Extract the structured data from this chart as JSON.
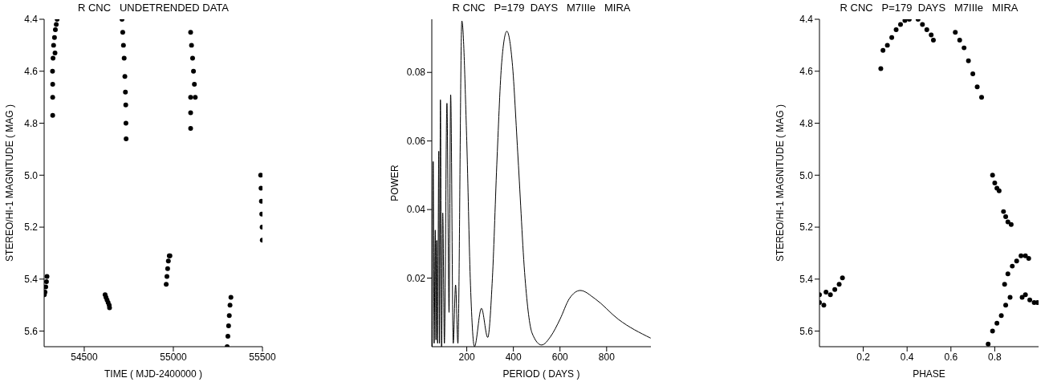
{
  "chart_data": [
    {
      "type": "scatter",
      "title": "R CNC   UNDETRENDED DATA",
      "xlabel": "TIME  ( MJD-2400000 )",
      "ylabel": "STEREO/HI-1 MAGNITUDE ( MAG )",
      "marker": "circle",
      "xlim": [
        54275,
        55500
      ],
      "xticks": [
        54500,
        55000,
        55500
      ],
      "ylim": [
        5.66,
        4.4
      ],
      "yticks": [
        4.4,
        4.6,
        4.8,
        {
          "value": 5,
          "label": "5.0"
        },
        5.2,
        5.4,
        5.6
      ],
      "series": [
        {
          "color": "#000000",
          "x": [
            54276,
            54280,
            54284,
            54288,
            54291,
            54322,
            54323,
            54323,
            54323,
            54325,
            54328,
            54333,
            54336,
            54338,
            54343,
            54348,
            54617,
            54622,
            54628,
            54634,
            54640,
            54642,
            54712,
            54716,
            54720,
            54724,
            54728,
            54731,
            54733,
            54734,
            54735,
            54960,
            54964,
            54968,
            54972,
            54977,
            54981,
            55097,
            55097,
            55097,
            55097,
            55102,
            55108,
            55113,
            55118,
            55123,
            55302,
            55306,
            55310,
            55314,
            55318,
            55323,
            55490,
            55492,
            55494,
            55496,
            55498,
            55499
          ],
          "values": [
            5.46,
            5.45,
            5.43,
            5.41,
            5.39,
            4.6,
            4.65,
            4.7,
            4.77,
            4.55,
            4.5,
            4.47,
            4.53,
            4.44,
            4.42,
            4.4,
            5.46,
            5.47,
            5.48,
            5.49,
            5.5,
            5.51,
            4.4,
            4.45,
            4.5,
            4.55,
            4.62,
            4.68,
            4.73,
            4.8,
            4.86,
            5.42,
            5.39,
            5.36,
            5.33,
            5.31,
            5.31,
            4.45,
            4.7,
            4.76,
            4.82,
            4.5,
            4.55,
            4.6,
            4.65,
            4.7,
            5.66,
            5.62,
            5.58,
            5.54,
            5.5,
            5.47,
            5.0,
            5.05,
            5.1,
            5.15,
            5.2,
            5.25
          ]
        }
      ]
    },
    {
      "type": "line",
      "title": "R CNC   P=179  DAYS   M7IIIe   MIRA",
      "xlabel": "PERIOD  ( DAYS )",
      "ylabel": "POWER",
      "xlim": [
        50,
        990
      ],
      "xticks": [
        200,
        400,
        600,
        800
      ],
      "ylim": [
        0,
        0.0955
      ],
      "yticks": [
        0.02,
        0.04,
        0.06,
        0.08
      ],
      "series": [
        {
          "color": "#000000",
          "x": [
            52,
            56,
            60,
            65,
            68,
            71,
            75,
            80,
            83,
            87,
            92,
            97,
            104,
            115,
            124,
            131,
            142,
            152,
            162,
            179,
            200,
            215,
            233,
            263,
            290,
            310,
            330,
            350,
            372,
            395,
            420,
            450,
            480,
            521,
            560,
            600,
            640,
            687,
            750,
            850,
            989
          ],
          "values": [
            0.0,
            0.054,
            0.001,
            0.034,
            0.002,
            0.031,
            0.001,
            0.057,
            0.001,
            0.072,
            0.0,
            0.039,
            0.001,
            0.071,
            0.01,
            0.0735,
            0.001,
            0.018,
            0.001,
            0.095,
            0.06,
            0.02,
            0.0,
            0.0112,
            0.0027,
            0.02,
            0.055,
            0.083,
            0.092,
            0.083,
            0.055,
            0.02,
            0.004,
            0.0005,
            0.003,
            0.008,
            0.014,
            0.0164,
            0.014,
            0.008,
            0.0025
          ]
        }
      ]
    },
    {
      "type": "scatter",
      "title": "R CNC   P=179  DAYS   M7IIIe   MIRA",
      "xlabel": "PHASE",
      "ylabel": "STEREO/HI-1 MAGNITUDE ( MAG )",
      "marker": "circle",
      "xlim": [
        0,
        1
      ],
      "xticks": [
        0.2,
        0.4,
        0.6,
        0.8
      ],
      "ylim": [
        5.66,
        4.4
      ],
      "yticks": [
        4.4,
        4.6,
        4.8,
        {
          "value": 5,
          "label": "5.0"
        },
        5.2,
        5.4,
        5.6
      ],
      "series": [
        {
          "color": "#000000",
          "x": [
            0.0,
            0.0,
            0.02,
            0.03,
            0.05,
            0.07,
            0.09,
            0.105,
            0.28,
            0.29,
            0.31,
            0.33,
            0.35,
            0.37,
            0.39,
            0.41,
            0.45,
            0.47,
            0.49,
            0.51,
            0.52,
            0.62,
            0.64,
            0.66,
            0.68,
            0.7,
            0.72,
            0.74,
            0.77,
            0.79,
            0.79,
            0.8,
            0.81,
            0.81,
            0.82,
            0.83,
            0.84,
            0.845,
            0.85,
            0.85,
            0.86,
            0.86,
            0.87,
            0.875,
            0.88,
            0.9,
            0.92,
            0.925,
            0.94,
            0.94,
            0.955,
            0.96,
            0.98,
            0.995
          ],
          "values": [
            5.46,
            5.49,
            5.5,
            5.45,
            5.46,
            5.44,
            5.42,
            5.395,
            4.59,
            4.52,
            4.5,
            4.47,
            4.44,
            4.42,
            4.405,
            4.4,
            4.4,
            4.42,
            4.44,
            4.46,
            4.48,
            4.45,
            4.48,
            4.51,
            4.56,
            4.61,
            4.66,
            4.7,
            5.65,
            5.0,
            5.6,
            5.03,
            5.05,
            5.57,
            5.06,
            5.54,
            5.14,
            5.42,
            5.16,
            5.5,
            5.18,
            5.38,
            5.47,
            5.19,
            5.35,
            5.33,
            5.31,
            5.47,
            5.31,
            5.46,
            5.32,
            5.48,
            5.49,
            5.49
          ]
        }
      ]
    }
  ]
}
